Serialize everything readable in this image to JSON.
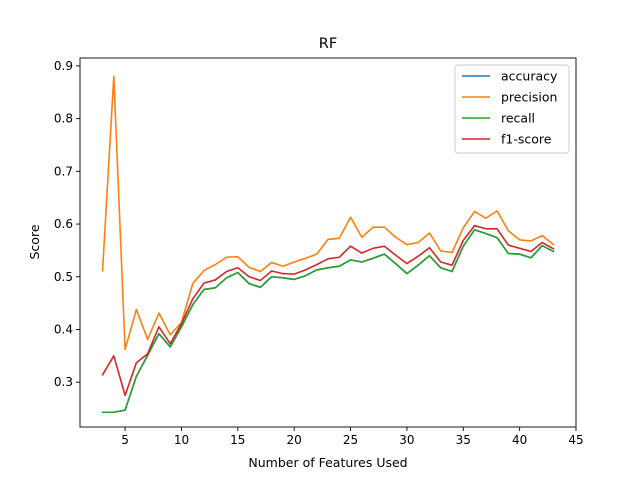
{
  "chart_data": {
    "type": "line",
    "title": "RF",
    "xlabel": "Number of Features Used",
    "ylabel": "Score",
    "xlim": [
      1.0,
      45.0
    ],
    "ylim": [
      0.215,
      0.915
    ],
    "x_ticks": [
      5,
      10,
      15,
      20,
      25,
      30,
      35,
      40,
      45
    ],
    "y_ticks": [
      0.3,
      0.4,
      0.5,
      0.6,
      0.7,
      0.8,
      0.9
    ],
    "grid": false,
    "legend_position": "top-right",
    "x": [
      3,
      4,
      5,
      6,
      7,
      8,
      9,
      10,
      11,
      12,
      13,
      14,
      15,
      16,
      17,
      18,
      19,
      20,
      21,
      22,
      23,
      24,
      25,
      26,
      27,
      28,
      29,
      30,
      31,
      32,
      33,
      34,
      35,
      36,
      37,
      38,
      39,
      40,
      41,
      42,
      43
    ],
    "series": [
      {
        "name": "accuracy",
        "color": "#1f77b4",
        "values": [
          0.243,
          0.243,
          0.247,
          0.311,
          0.351,
          0.392,
          0.367,
          0.405,
          0.447,
          0.476,
          0.479,
          0.498,
          0.508,
          0.487,
          0.48,
          0.5,
          0.498,
          0.495,
          0.502,
          0.513,
          0.517,
          0.52,
          0.532,
          0.528,
          0.535,
          0.543,
          0.525,
          0.506,
          0.522,
          0.54,
          0.517,
          0.51,
          0.558,
          0.589,
          0.582,
          0.574,
          0.544,
          0.543,
          0.536,
          0.559,
          0.548
        ]
      },
      {
        "name": "precision",
        "color": "#ff7f0e",
        "values": [
          0.511,
          0.88,
          0.362,
          0.438,
          0.381,
          0.431,
          0.39,
          0.413,
          0.487,
          0.512,
          0.523,
          0.537,
          0.538,
          0.518,
          0.51,
          0.527,
          0.52,
          0.528,
          0.535,
          0.543,
          0.571,
          0.573,
          0.613,
          0.575,
          0.594,
          0.594,
          0.575,
          0.561,
          0.565,
          0.583,
          0.549,
          0.546,
          0.593,
          0.624,
          0.611,
          0.625,
          0.587,
          0.57,
          0.568,
          0.578,
          0.561
        ]
      },
      {
        "name": "recall",
        "color": "#2ca02c",
        "values": [
          0.243,
          0.243,
          0.247,
          0.311,
          0.351,
          0.392,
          0.367,
          0.405,
          0.447,
          0.476,
          0.479,
          0.498,
          0.508,
          0.487,
          0.48,
          0.5,
          0.498,
          0.495,
          0.502,
          0.513,
          0.517,
          0.52,
          0.532,
          0.528,
          0.535,
          0.543,
          0.525,
          0.506,
          0.522,
          0.54,
          0.517,
          0.51,
          0.558,
          0.589,
          0.582,
          0.574,
          0.544,
          0.543,
          0.536,
          0.559,
          0.548
        ]
      },
      {
        "name": "f1-score",
        "color": "#d62728",
        "values": [
          0.314,
          0.35,
          0.275,
          0.337,
          0.354,
          0.405,
          0.373,
          0.411,
          0.458,
          0.488,
          0.494,
          0.51,
          0.517,
          0.5,
          0.493,
          0.511,
          0.506,
          0.505,
          0.513,
          0.523,
          0.534,
          0.537,
          0.558,
          0.545,
          0.554,
          0.558,
          0.541,
          0.525,
          0.539,
          0.555,
          0.528,
          0.522,
          0.569,
          0.597,
          0.591,
          0.591,
          0.56,
          0.554,
          0.548,
          0.565,
          0.553
        ]
      }
    ]
  }
}
